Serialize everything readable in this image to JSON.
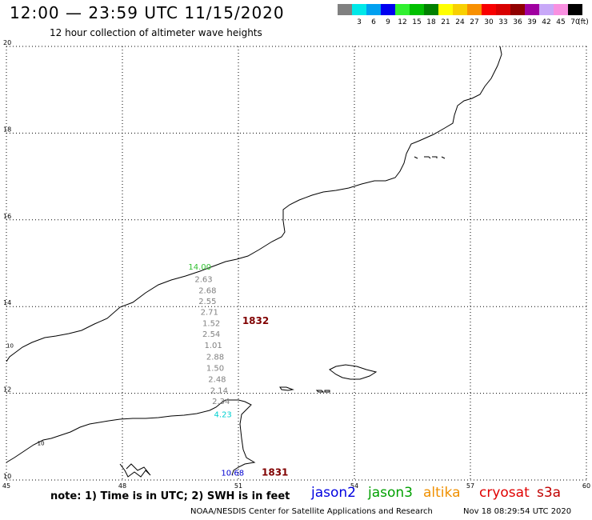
{
  "header": {
    "title": "12:00 — 23:59 UTC 11/15/2020",
    "subtitle": "12 hour collection of altimeter wave heights"
  },
  "color_scale": {
    "colors": [
      "#808080",
      "#00e8e8",
      "#00a0f0",
      "#0000f0",
      "#30f030",
      "#00c000",
      "#008000",
      "#ffff00",
      "#f8d000",
      "#f89000",
      "#f80000",
      "#d80000",
      "#900000",
      "#a000a0",
      "#c8a8f8",
      "#f890e0",
      "#000000"
    ],
    "labels": [
      "",
      "3",
      "6",
      "9",
      "12",
      "15",
      "18",
      "21",
      "24",
      "27",
      "30",
      "33",
      "36",
      "39",
      "42",
      "45",
      "70"
    ],
    "unit": "(ft)"
  },
  "axes": {
    "lat_labels": [
      "20",
      "18",
      "16",
      "14",
      "12",
      "10"
    ],
    "lon_labels": [
      "45",
      "48",
      "51",
      "54",
      "57",
      "60"
    ]
  },
  "coast_labels": [
    {
      "text": "10",
      "lon": 45.8,
      "lat": 10.8
    },
    {
      "text": "10",
      "lon": 45.0,
      "lat": 13.05
    }
  ],
  "wave_heights": [
    {
      "text": "14.00",
      "color": "#30c030"
    },
    {
      "text": "2.63",
      "color": "#808080"
    },
    {
      "text": "2.68",
      "color": "#808080"
    },
    {
      "text": "2.55",
      "color": "#808080"
    },
    {
      "text": "2.71",
      "color": "#808080"
    },
    {
      "text": "1.52",
      "color": "#808080"
    },
    {
      "text": "2.54",
      "color": "#808080"
    },
    {
      "text": "1.01",
      "color": "#808080"
    },
    {
      "text": "2.88",
      "color": "#808080"
    },
    {
      "text": "1.50",
      "color": "#808080"
    },
    {
      "text": "2.48",
      "color": "#808080"
    },
    {
      "text": "2.14",
      "color": "#808080"
    },
    {
      "text": "2.34",
      "color": "#808080"
    },
    {
      "text": "4.23",
      "color": "#00d0d0"
    },
    {
      "text": "10.68",
      "color": "#0000d0"
    }
  ],
  "pass_times": [
    {
      "text": "1832",
      "color": "#800000",
      "lon": 51.1,
      "lat": 13.6
    },
    {
      "text": "1831",
      "color": "#800000",
      "lon": 51.6,
      "lat": 10.1
    }
  ],
  "footer": {
    "note": "note: 1) Time is in UTC; 2) SWH is in feet",
    "satellites": [
      {
        "name": "jason2",
        "color": "#0000e0"
      },
      {
        "name": "jason3",
        "color": "#00a000"
      },
      {
        "name": "altika",
        "color": "#f09000"
      },
      {
        "name": "cryosat",
        "color": "#e00000"
      },
      {
        "name": "s3a",
        "color": "#c00000"
      }
    ],
    "credit": "NOAA/NESDIS Center for Satellite Applications and Research",
    "timestamp": "Nov 18 08:29:54 UTC 2020"
  }
}
